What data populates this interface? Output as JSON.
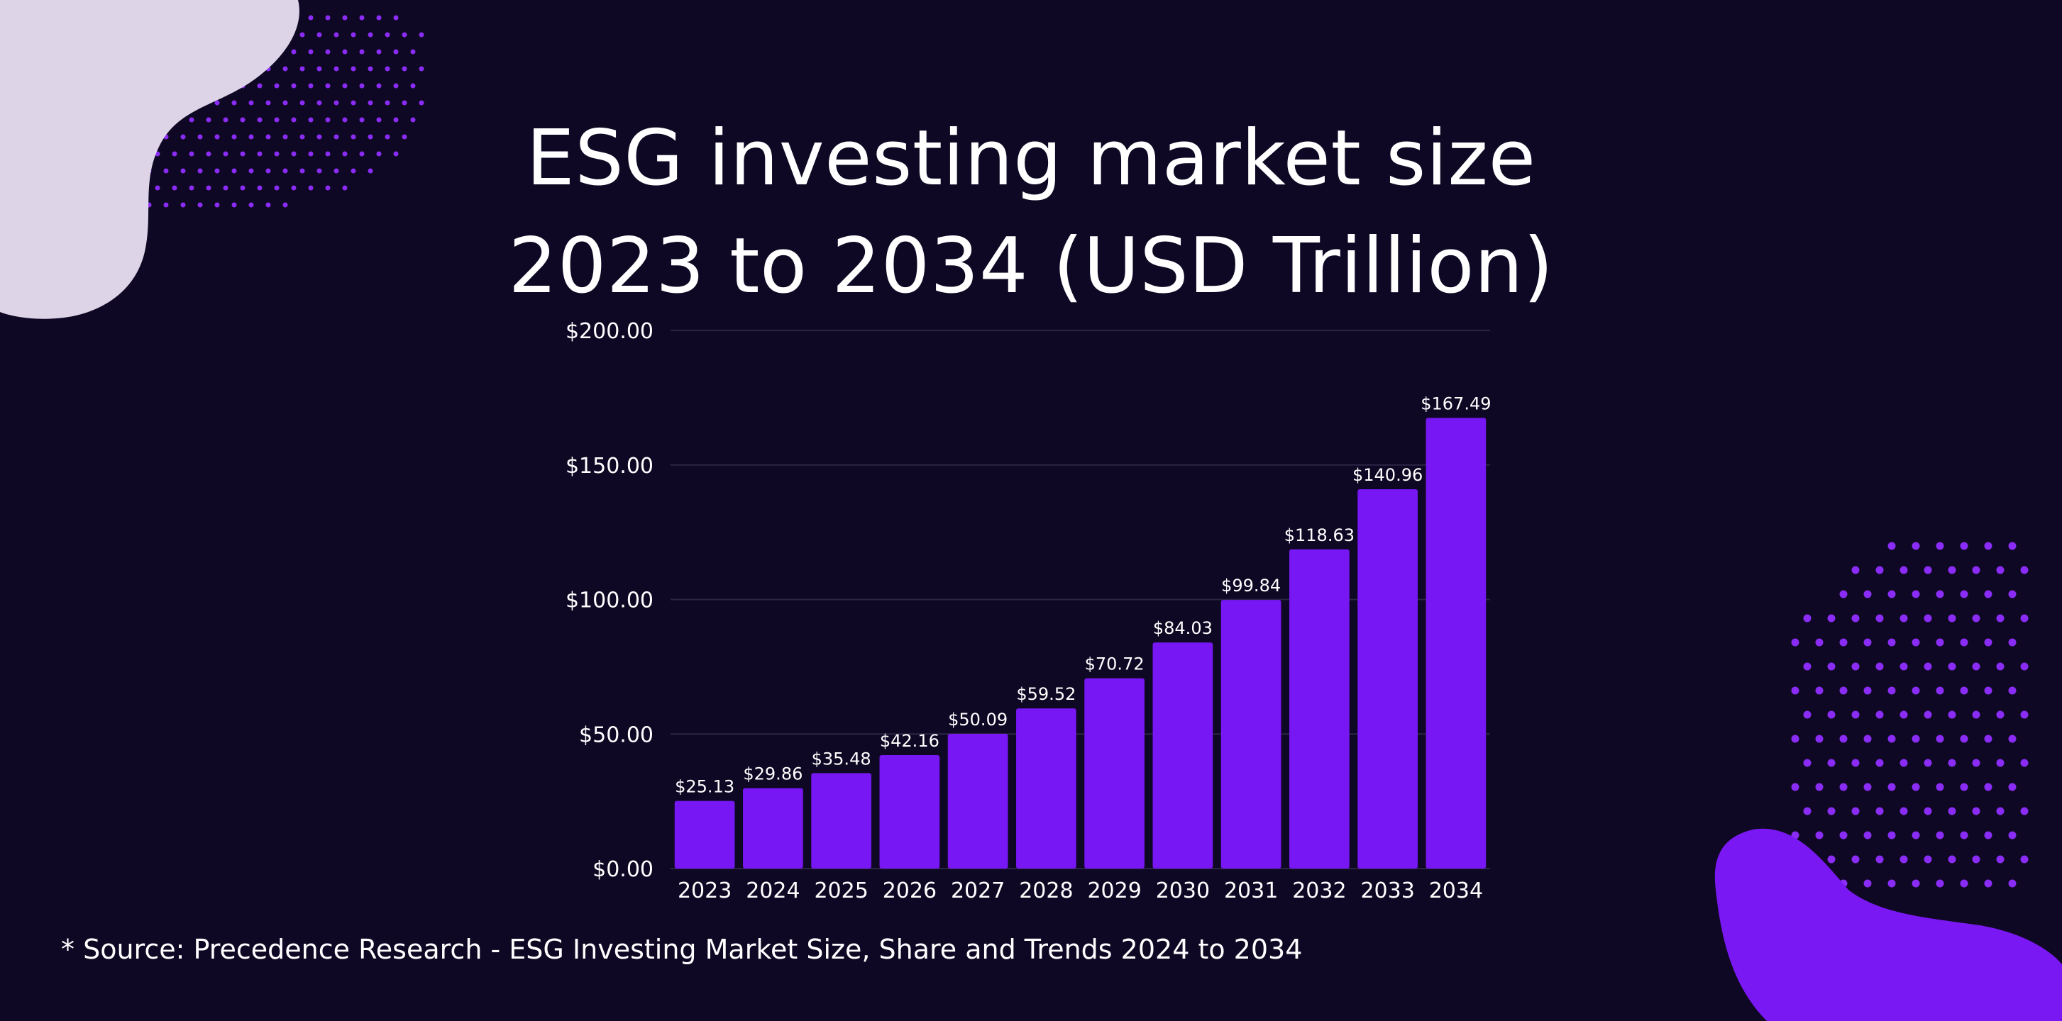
{
  "title": {
    "line1": "ESG investing market size",
    "line2": "2023 to 2034 (USD Trillion)"
  },
  "source": "* Source: Precedence Research - ESG Investing Market Size, Share and Trends 2024 to 2034",
  "colors": {
    "background": "#0f0824",
    "bar": "#7617f4",
    "blob_light": "#ded4e8",
    "blob_purple": "#7a18f3",
    "dots": "#8a2cf5",
    "grid": "#2c2444",
    "text": "#ffffff"
  },
  "chart_data": {
    "type": "bar",
    "categories": [
      "2023",
      "2024",
      "2025",
      "2026",
      "2027",
      "2028",
      "2029",
      "2030",
      "2031",
      "2032",
      "2033",
      "2034"
    ],
    "values": [
      25.13,
      29.86,
      35.48,
      42.16,
      50.09,
      59.52,
      70.72,
      84.03,
      99.84,
      118.63,
      140.96,
      167.49
    ],
    "value_labels": [
      "$25.13",
      "$29.86",
      "$35.48",
      "$42.16",
      "$50.09",
      "$59.52",
      "$70.72",
      "$84.03",
      "$99.84",
      "$118.63",
      "$140.96",
      "$167.49"
    ],
    "y_ticks": [
      0,
      50,
      100,
      150,
      200
    ],
    "y_tick_labels": [
      "$0.00",
      "$50.00",
      "$100.00",
      "$150.00",
      "$200.00"
    ],
    "ylim": [
      0,
      200
    ],
    "grid": true,
    "legend": "none"
  }
}
